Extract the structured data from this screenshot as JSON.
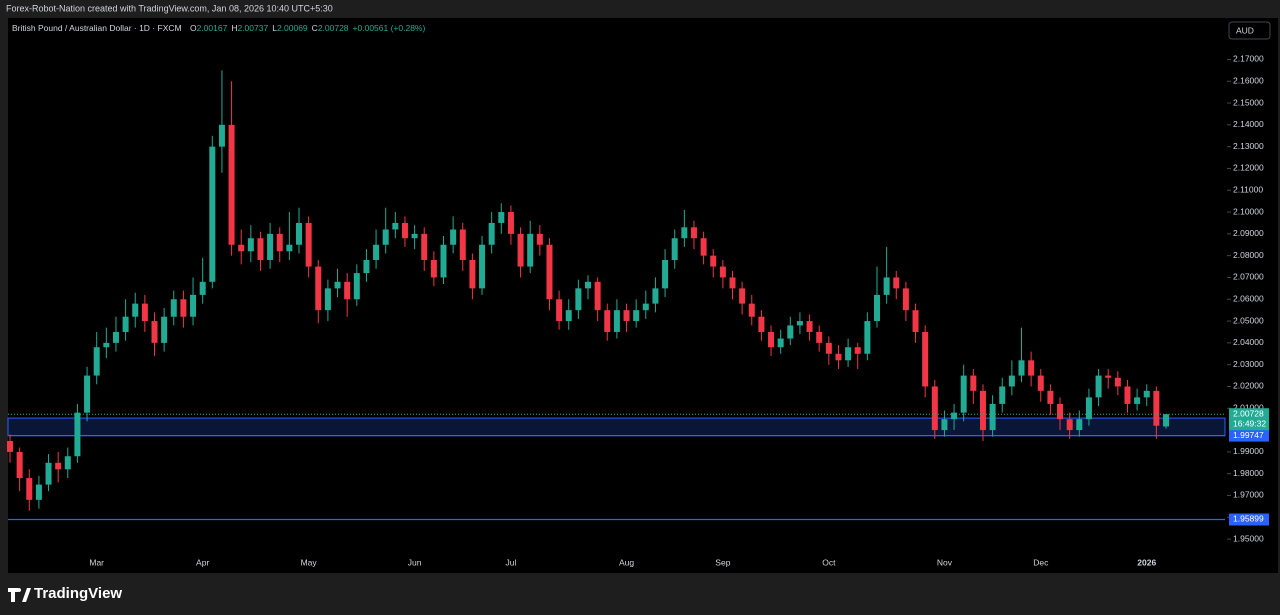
{
  "header": {
    "credit": "Forex-Robot-Nation created with TradingView.com, Jan 08, 2026 10:40 UTC+5:30"
  },
  "footer": {
    "brand": "TradingView"
  },
  "chart_data": {
    "type": "candlestick",
    "symbol": "British Pound / Australian Dollar · 1D · FXCM",
    "legend": [
      {
        "key": "O",
        "value": "2.00167"
      },
      {
        "key": "H",
        "value": "2.00737"
      },
      {
        "key": "L",
        "value": "2.00069"
      },
      {
        "key": "C",
        "value": "2.00728"
      }
    ],
    "change": "+0.00561 (+0.28%)",
    "currency": "AUD",
    "up_color": "#22ab94",
    "down_color": "#f23645",
    "categories": [
      null,
      null,
      null,
      null,
      null,
      null,
      null,
      null,
      null,
      "Mar",
      null,
      null,
      null,
      null,
      null,
      null,
      null,
      null,
      null,
      null,
      "Apr",
      null,
      null,
      null,
      null,
      null,
      null,
      null,
      null,
      null,
      null,
      "May",
      null,
      null,
      null,
      null,
      null,
      null,
      null,
      null,
      null,
      null,
      "Jun",
      null,
      null,
      null,
      null,
      null,
      null,
      null,
      null,
      null,
      "Jul",
      null,
      null,
      null,
      null,
      null,
      null,
      null,
      null,
      null,
      null,
      null,
      "Aug",
      null,
      null,
      null,
      null,
      null,
      null,
      null,
      null,
      null,
      "Sep",
      null,
      null,
      null,
      null,
      null,
      null,
      null,
      null,
      null,
      null,
      "Oct",
      null,
      null,
      null,
      null,
      null,
      null,
      null,
      null,
      null,
      null,
      null,
      "Nov",
      null,
      null,
      null,
      null,
      null,
      null,
      null,
      null,
      null,
      "Dec",
      null,
      null,
      null,
      null,
      null,
      null,
      null,
      null,
      null,
      null,
      "2026",
      null,
      null
    ],
    "open": [
      1.995,
      1.99,
      1.978,
      1.968,
      1.975,
      1.985,
      1.982,
      1.988,
      2.008,
      2.025,
      2.038,
      2.04,
      2.045,
      2.052,
      2.058,
      2.05,
      2.04,
      2.052,
      2.06,
      2.052,
      2.062,
      2.068,
      2.13,
      2.14,
      2.085,
      2.082,
      2.088,
      2.078,
      2.09,
      2.082,
      2.085,
      2.095,
      2.075,
      2.055,
      2.065,
      2.068,
      2.06,
      2.072,
      2.078,
      2.085,
      2.092,
      2.095,
      2.088,
      2.09,
      2.078,
      2.07,
      2.085,
      2.092,
      2.078,
      2.065,
      2.085,
      2.095,
      2.1,
      2.09,
      2.075,
      2.09,
      2.085,
      2.06,
      2.05,
      2.055,
      2.065,
      2.068,
      2.055,
      2.045,
      2.055,
      2.05,
      2.055,
      2.058,
      2.065,
      2.078,
      2.088,
      2.093,
      2.088,
      2.08,
      2.075,
      2.07,
      2.065,
      2.058,
      2.052,
      2.045,
      2.038,
      2.042,
      2.048,
      2.05,
      2.045,
      2.04,
      2.035,
      2.032,
      2.038,
      2.035,
      2.05,
      2.062,
      2.07,
      2.065,
      2.055,
      2.045,
      2.02,
      2.0,
      2.005,
      2.008,
      2.025,
      2.018,
      2.0,
      2.012,
      2.02,
      2.025,
      2.032,
      2.025,
      2.018,
      2.012,
      2.005,
      2.0,
      2.005,
      2.015,
      2.025,
      2.024,
      2.02,
      2.012,
      2.015,
      2.018,
      2.00167
    ],
    "high": [
      1.998,
      1.992,
      1.982,
      1.979,
      1.989,
      1.99,
      1.992,
      2.012,
      2.029,
      2.045,
      2.047,
      2.052,
      2.06,
      2.063,
      2.062,
      2.054,
      2.056,
      2.064,
      2.064,
      2.07,
      2.079,
      2.135,
      2.165,
      2.16,
      2.092,
      2.094,
      2.091,
      2.095,
      2.093,
      2.1,
      2.102,
      2.098,
      2.078,
      2.069,
      2.074,
      2.072,
      2.076,
      2.083,
      2.092,
      2.102,
      2.1,
      2.098,
      2.094,
      2.093,
      2.082,
      2.089,
      2.098,
      2.095,
      2.081,
      2.089,
      2.1,
      2.104,
      2.103,
      2.093,
      2.096,
      2.094,
      2.088,
      2.064,
      2.06,
      2.069,
      2.071,
      2.07,
      2.058,
      2.06,
      2.058,
      2.06,
      2.064,
      2.07,
      2.083,
      2.092,
      2.101,
      2.096,
      2.091,
      2.083,
      2.078,
      2.073,
      2.068,
      2.062,
      2.055,
      2.048,
      2.046,
      2.052,
      2.054,
      2.053,
      2.048,
      2.043,
      2.039,
      2.042,
      2.04,
      2.054,
      2.075,
      2.084,
      2.073,
      2.068,
      2.058,
      2.048,
      2.023,
      2.009,
      2.012,
      2.03,
      2.028,
      2.021,
      2.016,
      2.024,
      2.032,
      2.047,
      2.036,
      2.028,
      2.021,
      2.015,
      2.008,
      2.009,
      2.019,
      2.028,
      2.028,
      2.027,
      2.023,
      2.019,
      2.021,
      2.02,
      2.00737
    ],
    "low": [
      1.985,
      1.972,
      1.963,
      1.964,
      1.972,
      1.976,
      1.978,
      1.985,
      2.004,
      2.021,
      2.033,
      2.036,
      2.041,
      2.047,
      2.045,
      2.034,
      2.036,
      2.048,
      2.047,
      2.048,
      2.058,
      2.065,
      2.118,
      2.08,
      2.076,
      2.077,
      2.073,
      2.074,
      2.077,
      2.078,
      2.081,
      2.07,
      2.049,
      2.05,
      2.061,
      2.052,
      2.057,
      2.068,
      2.074,
      2.081,
      2.088,
      2.084,
      2.083,
      2.073,
      2.066,
      2.067,
      2.081,
      2.073,
      2.06,
      2.062,
      2.081,
      2.09,
      2.085,
      2.07,
      2.072,
      2.08,
      2.055,
      2.046,
      2.046,
      2.051,
      2.06,
      2.05,
      2.041,
      2.042,
      2.045,
      2.047,
      2.051,
      2.054,
      2.061,
      2.074,
      2.084,
      2.083,
      2.076,
      2.07,
      2.065,
      2.06,
      2.053,
      2.048,
      2.041,
      2.034,
      2.035,
      2.039,
      2.044,
      2.041,
      2.036,
      2.03,
      2.028,
      2.029,
      2.028,
      2.032,
      2.047,
      2.058,
      2.06,
      2.05,
      2.04,
      2.015,
      1.996,
      1.997,
      2.0,
      2.004,
      2.012,
      1.995,
      1.997,
      2.008,
      2.016,
      2.022,
      2.02,
      2.013,
      2.007,
      2.0,
      1.996,
      1.997,
      2.002,
      2.011,
      2.019,
      2.016,
      2.008,
      2.009,
      2.011,
      1.996,
      2.00069
    ],
    "close": [
      1.99,
      1.978,
      1.968,
      1.975,
      1.985,
      1.982,
      1.988,
      2.008,
      2.025,
      2.038,
      2.04,
      2.045,
      2.052,
      2.058,
      2.05,
      2.04,
      2.052,
      2.06,
      2.052,
      2.062,
      2.068,
      2.13,
      2.14,
      2.085,
      2.082,
      2.088,
      2.078,
      2.09,
      2.082,
      2.085,
      2.095,
      2.075,
      2.055,
      2.065,
      2.068,
      2.06,
      2.072,
      2.078,
      2.085,
      2.092,
      2.095,
      2.088,
      2.09,
      2.078,
      2.07,
      2.085,
      2.092,
      2.078,
      2.065,
      2.085,
      2.095,
      2.1,
      2.09,
      2.075,
      2.09,
      2.085,
      2.06,
      2.05,
      2.055,
      2.065,
      2.068,
      2.055,
      2.045,
      2.055,
      2.05,
      2.055,
      2.058,
      2.065,
      2.078,
      2.088,
      2.093,
      2.088,
      2.08,
      2.075,
      2.07,
      2.065,
      2.058,
      2.052,
      2.045,
      2.038,
      2.042,
      2.048,
      2.05,
      2.045,
      2.04,
      2.035,
      2.032,
      2.038,
      2.035,
      2.05,
      2.062,
      2.07,
      2.065,
      2.055,
      2.045,
      2.02,
      2.0,
      2.005,
      2.008,
      2.025,
      2.018,
      2.0,
      2.012,
      2.02,
      2.025,
      2.032,
      2.025,
      2.018,
      2.012,
      2.005,
      2.0,
      2.005,
      2.015,
      2.025,
      2.024,
      2.02,
      2.012,
      2.015,
      2.018,
      2.002,
      2.00728
    ],
    "ylim": [
      1.945,
      2.189
    ],
    "yticks": [
      {
        "value": 1.95,
        "label": "1.95000"
      },
      {
        "value": 1.96,
        "label": "1.96000"
      },
      {
        "value": 1.97,
        "label": "1.97000"
      },
      {
        "value": 1.98,
        "label": "1.98000"
      },
      {
        "value": 1.99,
        "label": "1.99000"
      },
      {
        "value": 2.01,
        "label": "2.01000"
      },
      {
        "value": 2.02,
        "label": "2.02000"
      },
      {
        "value": 2.03,
        "label": "2.03000"
      },
      {
        "value": 2.04,
        "label": "2.04000"
      },
      {
        "value": 2.05,
        "label": "2.05000"
      },
      {
        "value": 2.06,
        "label": "2.06000"
      },
      {
        "value": 2.07,
        "label": "2.07000"
      },
      {
        "value": 2.08,
        "label": "2.08000"
      },
      {
        "value": 2.09,
        "label": "2.09000"
      },
      {
        "value": 2.1,
        "label": "2.10000"
      },
      {
        "value": 2.11,
        "label": "2.11000"
      },
      {
        "value": 2.12,
        "label": "2.12000"
      },
      {
        "value": 2.13,
        "label": "2.13000"
      },
      {
        "value": 2.14,
        "label": "2.14000"
      },
      {
        "value": 2.15,
        "label": "2.15000"
      },
      {
        "value": 2.16,
        "label": "2.16000"
      },
      {
        "value": 2.17,
        "label": "2.17000"
      }
    ],
    "grid": false,
    "zone": {
      "upper": 2.0055,
      "lower": 1.99747,
      "color": "#2962ff"
    },
    "levels": [
      {
        "value": 1.99747,
        "label": "1.99747",
        "color": "#2962ff"
      },
      {
        "value": 1.95899,
        "label": "1.95899",
        "color": "#2962ff"
      }
    ],
    "last_price": {
      "value": 2.00728,
      "label": "2.00728",
      "countdown": "16:49:32",
      "color": "#22ab94"
    }
  }
}
